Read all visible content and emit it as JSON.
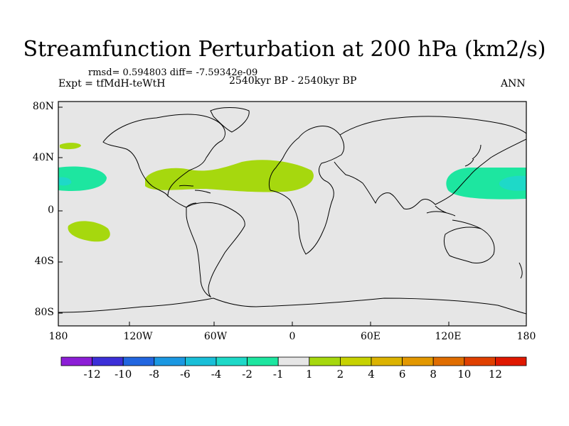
{
  "title": "Streamfunction Perturbation at 200 hPa (km2/s)",
  "stats": "rmsd= 0.594803 diff= -7.59342e-09",
  "expt": "Expt = tfMdH-teWtH",
  "period": "2540kyr BP - 2540kyr BP",
  "season": "ANN",
  "lat_labels": [
    "80N",
    "40N",
    "0",
    "40S",
    "80S"
  ],
  "lon_labels": [
    "180",
    "120W",
    "60W",
    "0",
    "60E",
    "120E",
    "180"
  ],
  "colorbar": {
    "colors": [
      "#8c1ed6",
      "#3c2fd8",
      "#2266e0",
      "#1b98e2",
      "#19bfd8",
      "#1ed9c8",
      "#1de6a0",
      "#e6e6e6",
      "#a6d80e",
      "#c7d200",
      "#dcb300",
      "#e39800",
      "#e06d00",
      "#e04000",
      "#e01800"
    ],
    "labels": [
      "-12",
      "-10",
      "-8",
      "-6",
      "-4",
      "-2",
      "-1",
      "1",
      "2",
      "4",
      "6",
      "8",
      "10",
      "12"
    ]
  },
  "colors": {
    "background": "#e6e6e6",
    "positive_1_2": "#a6d80e",
    "negative_2_1": "#1de6a0",
    "negative_4_2": "#1ed9c8"
  }
}
